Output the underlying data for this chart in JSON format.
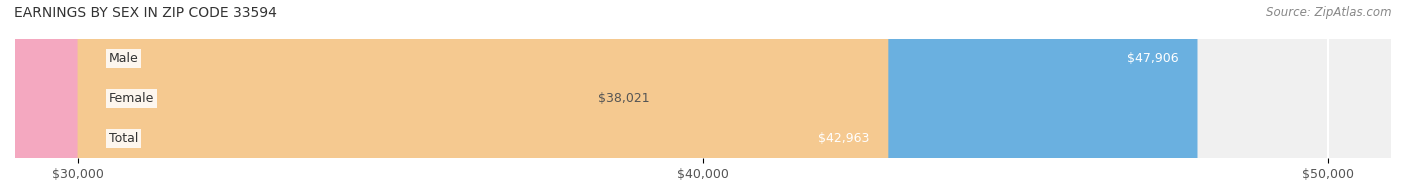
{
  "title": "EARNINGS BY SEX IN ZIP CODE 33594",
  "source": "Source: ZipAtlas.com",
  "categories": [
    "Male",
    "Female",
    "Total"
  ],
  "values": [
    47906,
    38021,
    42963
  ],
  "bar_colors": [
    "#6ab0e0",
    "#f4a8c0",
    "#f5c990"
  ],
  "label_colors": [
    "#ffffff",
    "#555555",
    "#ffffff"
  ],
  "label_inside": [
    true,
    false,
    true
  ],
  "x_min": 30000,
  "x_max": 50000,
  "x_ticks": [
    30000,
    40000,
    50000
  ],
  "x_tick_labels": [
    "$30,000",
    "$40,000",
    "$50,000"
  ],
  "bar_height": 0.55,
  "background_color": "#f0f0f0",
  "figure_background": "#ffffff",
  "label_prefix": "$",
  "title_fontsize": 10,
  "source_fontsize": 8.5,
  "tick_fontsize": 9,
  "bar_label_fontsize": 9,
  "category_fontsize": 9
}
